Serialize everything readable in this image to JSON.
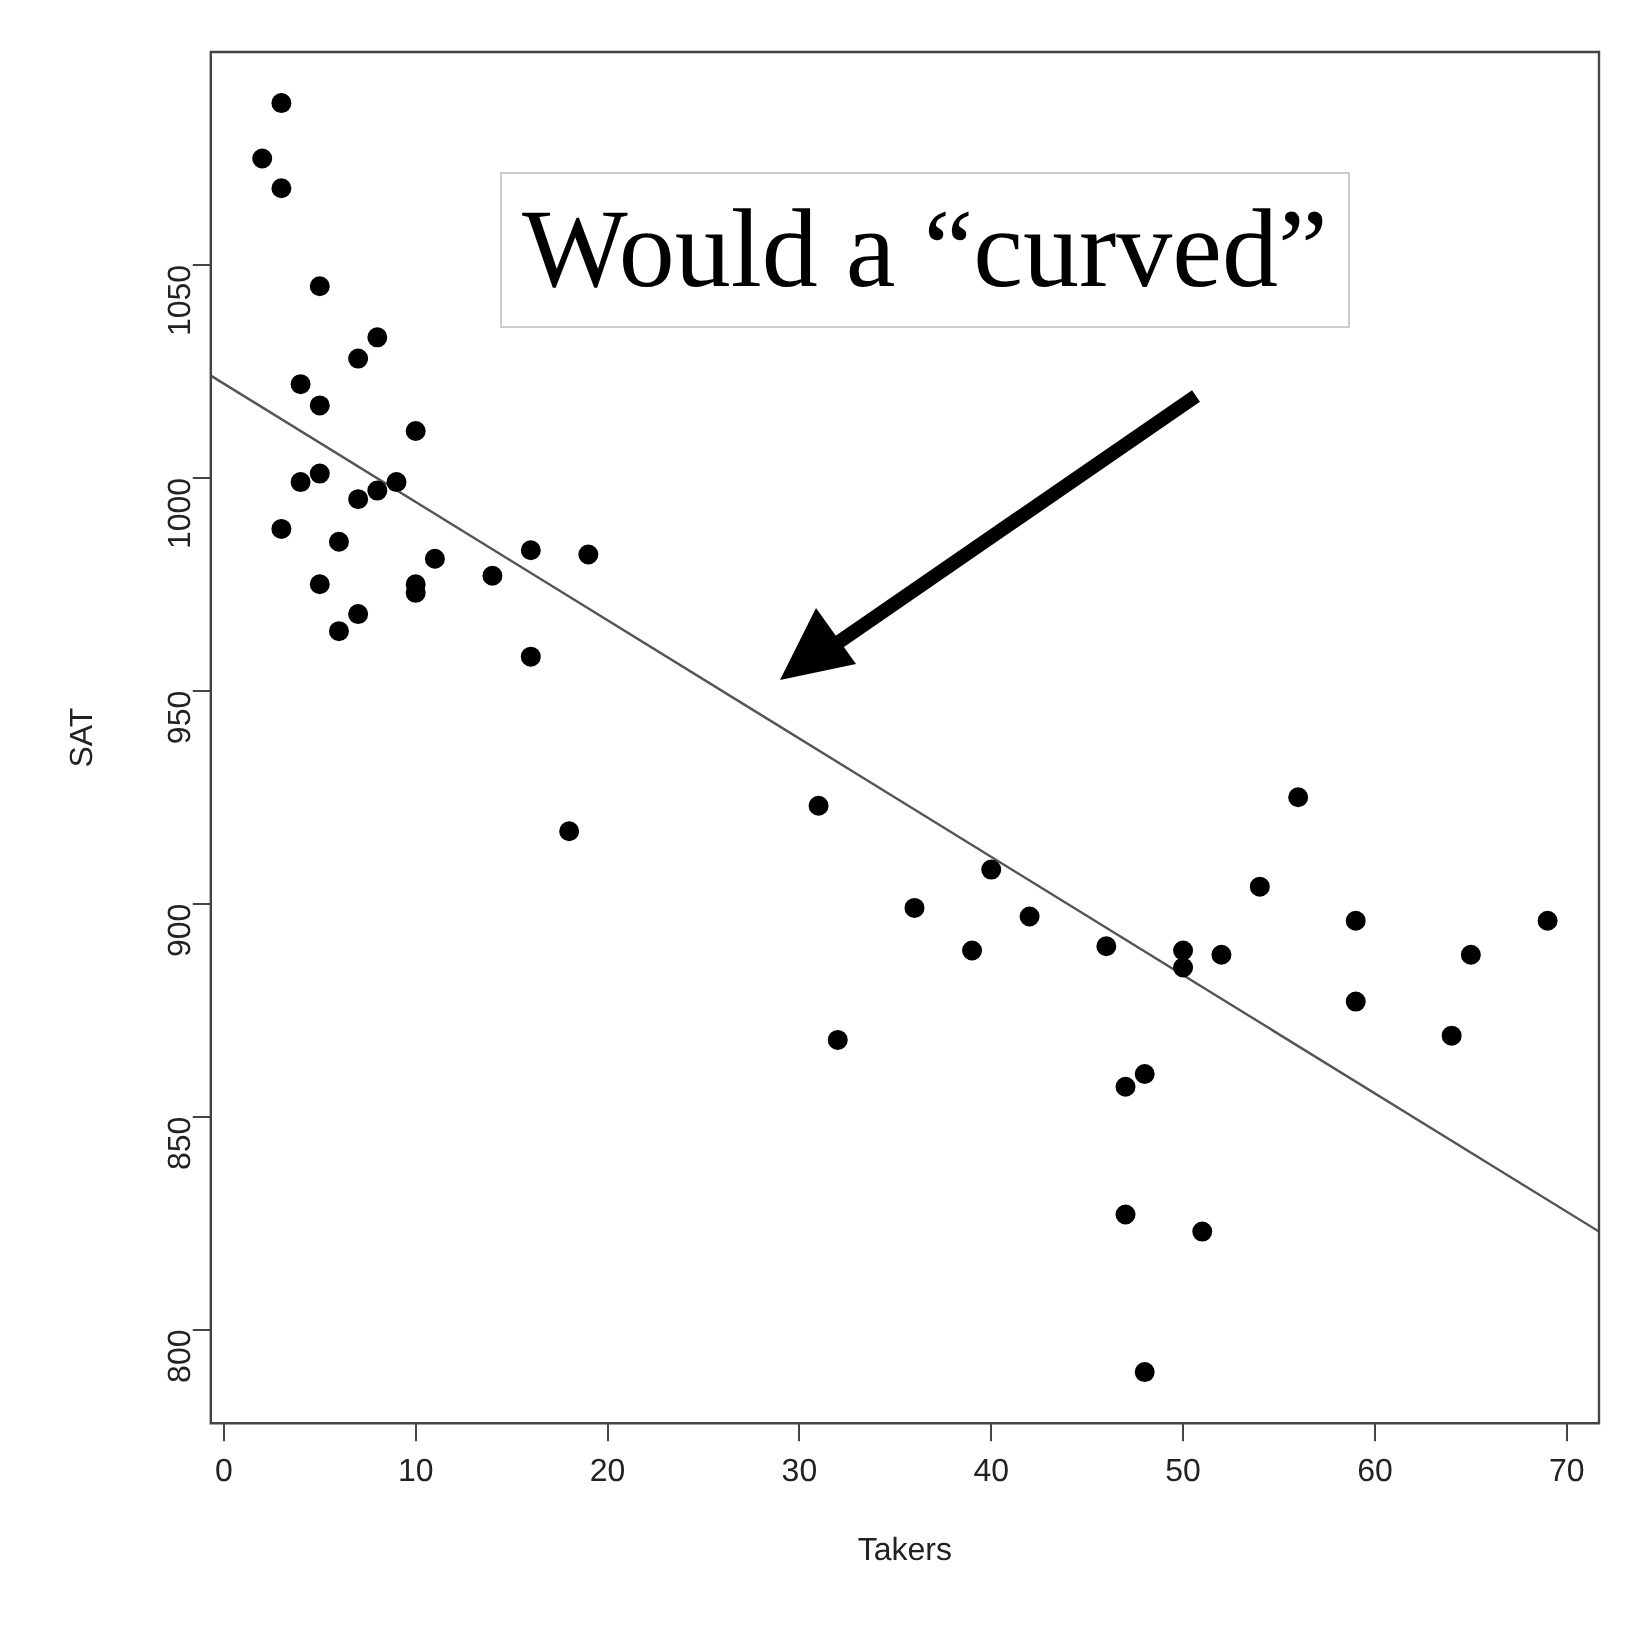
{
  "chart_data": {
    "type": "scatter",
    "xlabel": "Takers",
    "ylabel": "SAT",
    "xlim": [
      -0.68,
      71.68
    ],
    "ylim": [
      778,
      1100
    ],
    "xticks": [
      0,
      10,
      20,
      30,
      40,
      50,
      60,
      70
    ],
    "yticks": [
      800,
      850,
      900,
      950,
      1000,
      1050
    ],
    "grid": false,
    "legend": false,
    "marker": "circle",
    "series": [
      {
        "type": "scatter",
        "color": "#000000",
        "x": [
          3,
          2,
          3,
          5,
          8,
          7,
          4,
          5,
          10,
          4,
          5,
          7,
          8,
          9,
          3,
          6,
          5,
          10,
          10,
          11,
          14,
          16,
          19,
          6,
          7,
          16,
          18,
          31,
          32,
          36,
          40,
          39,
          42,
          46,
          47,
          48,
          47,
          48,
          50,
          50,
          52,
          51,
          54,
          56,
          59,
          59,
          64,
          65,
          69
        ],
        "values": [
          1088,
          1075,
          1068,
          1045,
          1033,
          1028,
          1022,
          1017,
          1011,
          999,
          1001,
          995,
          997,
          999,
          988,
          985,
          975,
          975,
          973,
          981,
          977,
          983,
          982,
          964,
          968,
          958,
          917,
          923,
          868,
          899,
          908,
          889,
          897,
          890,
          857,
          860,
          827,
          790,
          889,
          885,
          888,
          823,
          904,
          925,
          896,
          877,
          869,
          888,
          896
        ]
      },
      {
        "type": "line",
        "color": "#555555",
        "marker": "none",
        "x": [
          -0.68,
          71.68
        ],
        "values": [
          1024,
          823
        ]
      }
    ],
    "annotations": [
      "Would a “curved”"
    ]
  }
}
